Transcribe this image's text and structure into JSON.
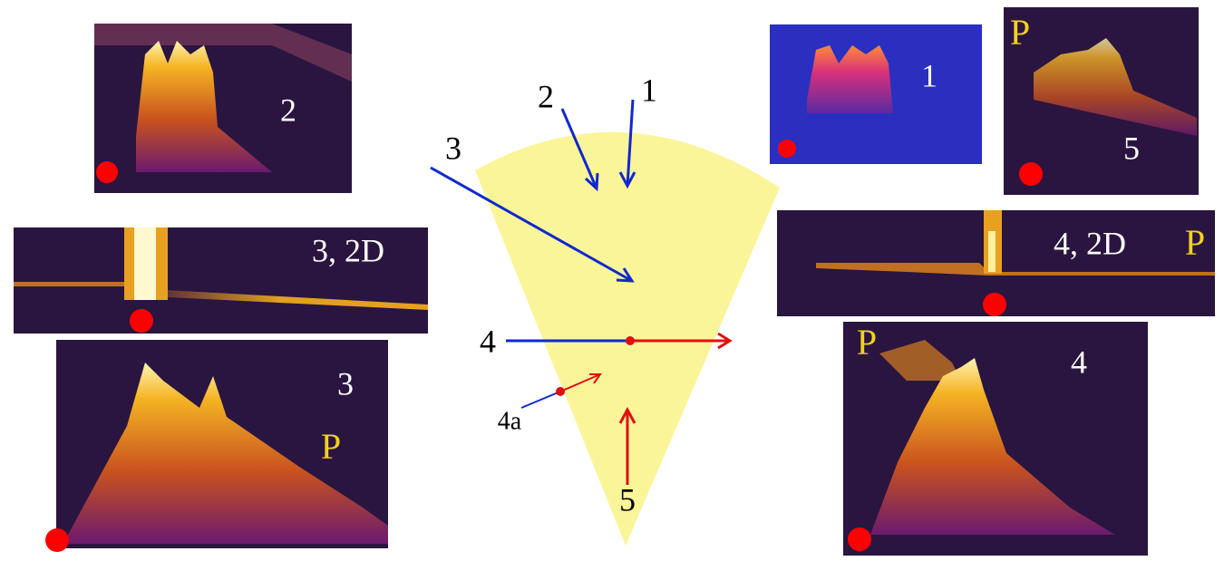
{
  "panels": [
    {
      "label": "2"
    },
    {
      "label": "1"
    },
    {
      "label": "5",
      "marker": "P"
    },
    {
      "label": "3, 2D"
    },
    {
      "label": "4, 2D",
      "marker": "P"
    },
    {
      "label": "3",
      "marker": "P"
    },
    {
      "label": "4",
      "marker": "P"
    }
  ],
  "diagram": {
    "arrows": [
      {
        "label": "1"
      },
      {
        "label": "2"
      },
      {
        "label": "3"
      },
      {
        "label": "4"
      },
      {
        "label": "4a"
      },
      {
        "label": "5"
      }
    ]
  }
}
